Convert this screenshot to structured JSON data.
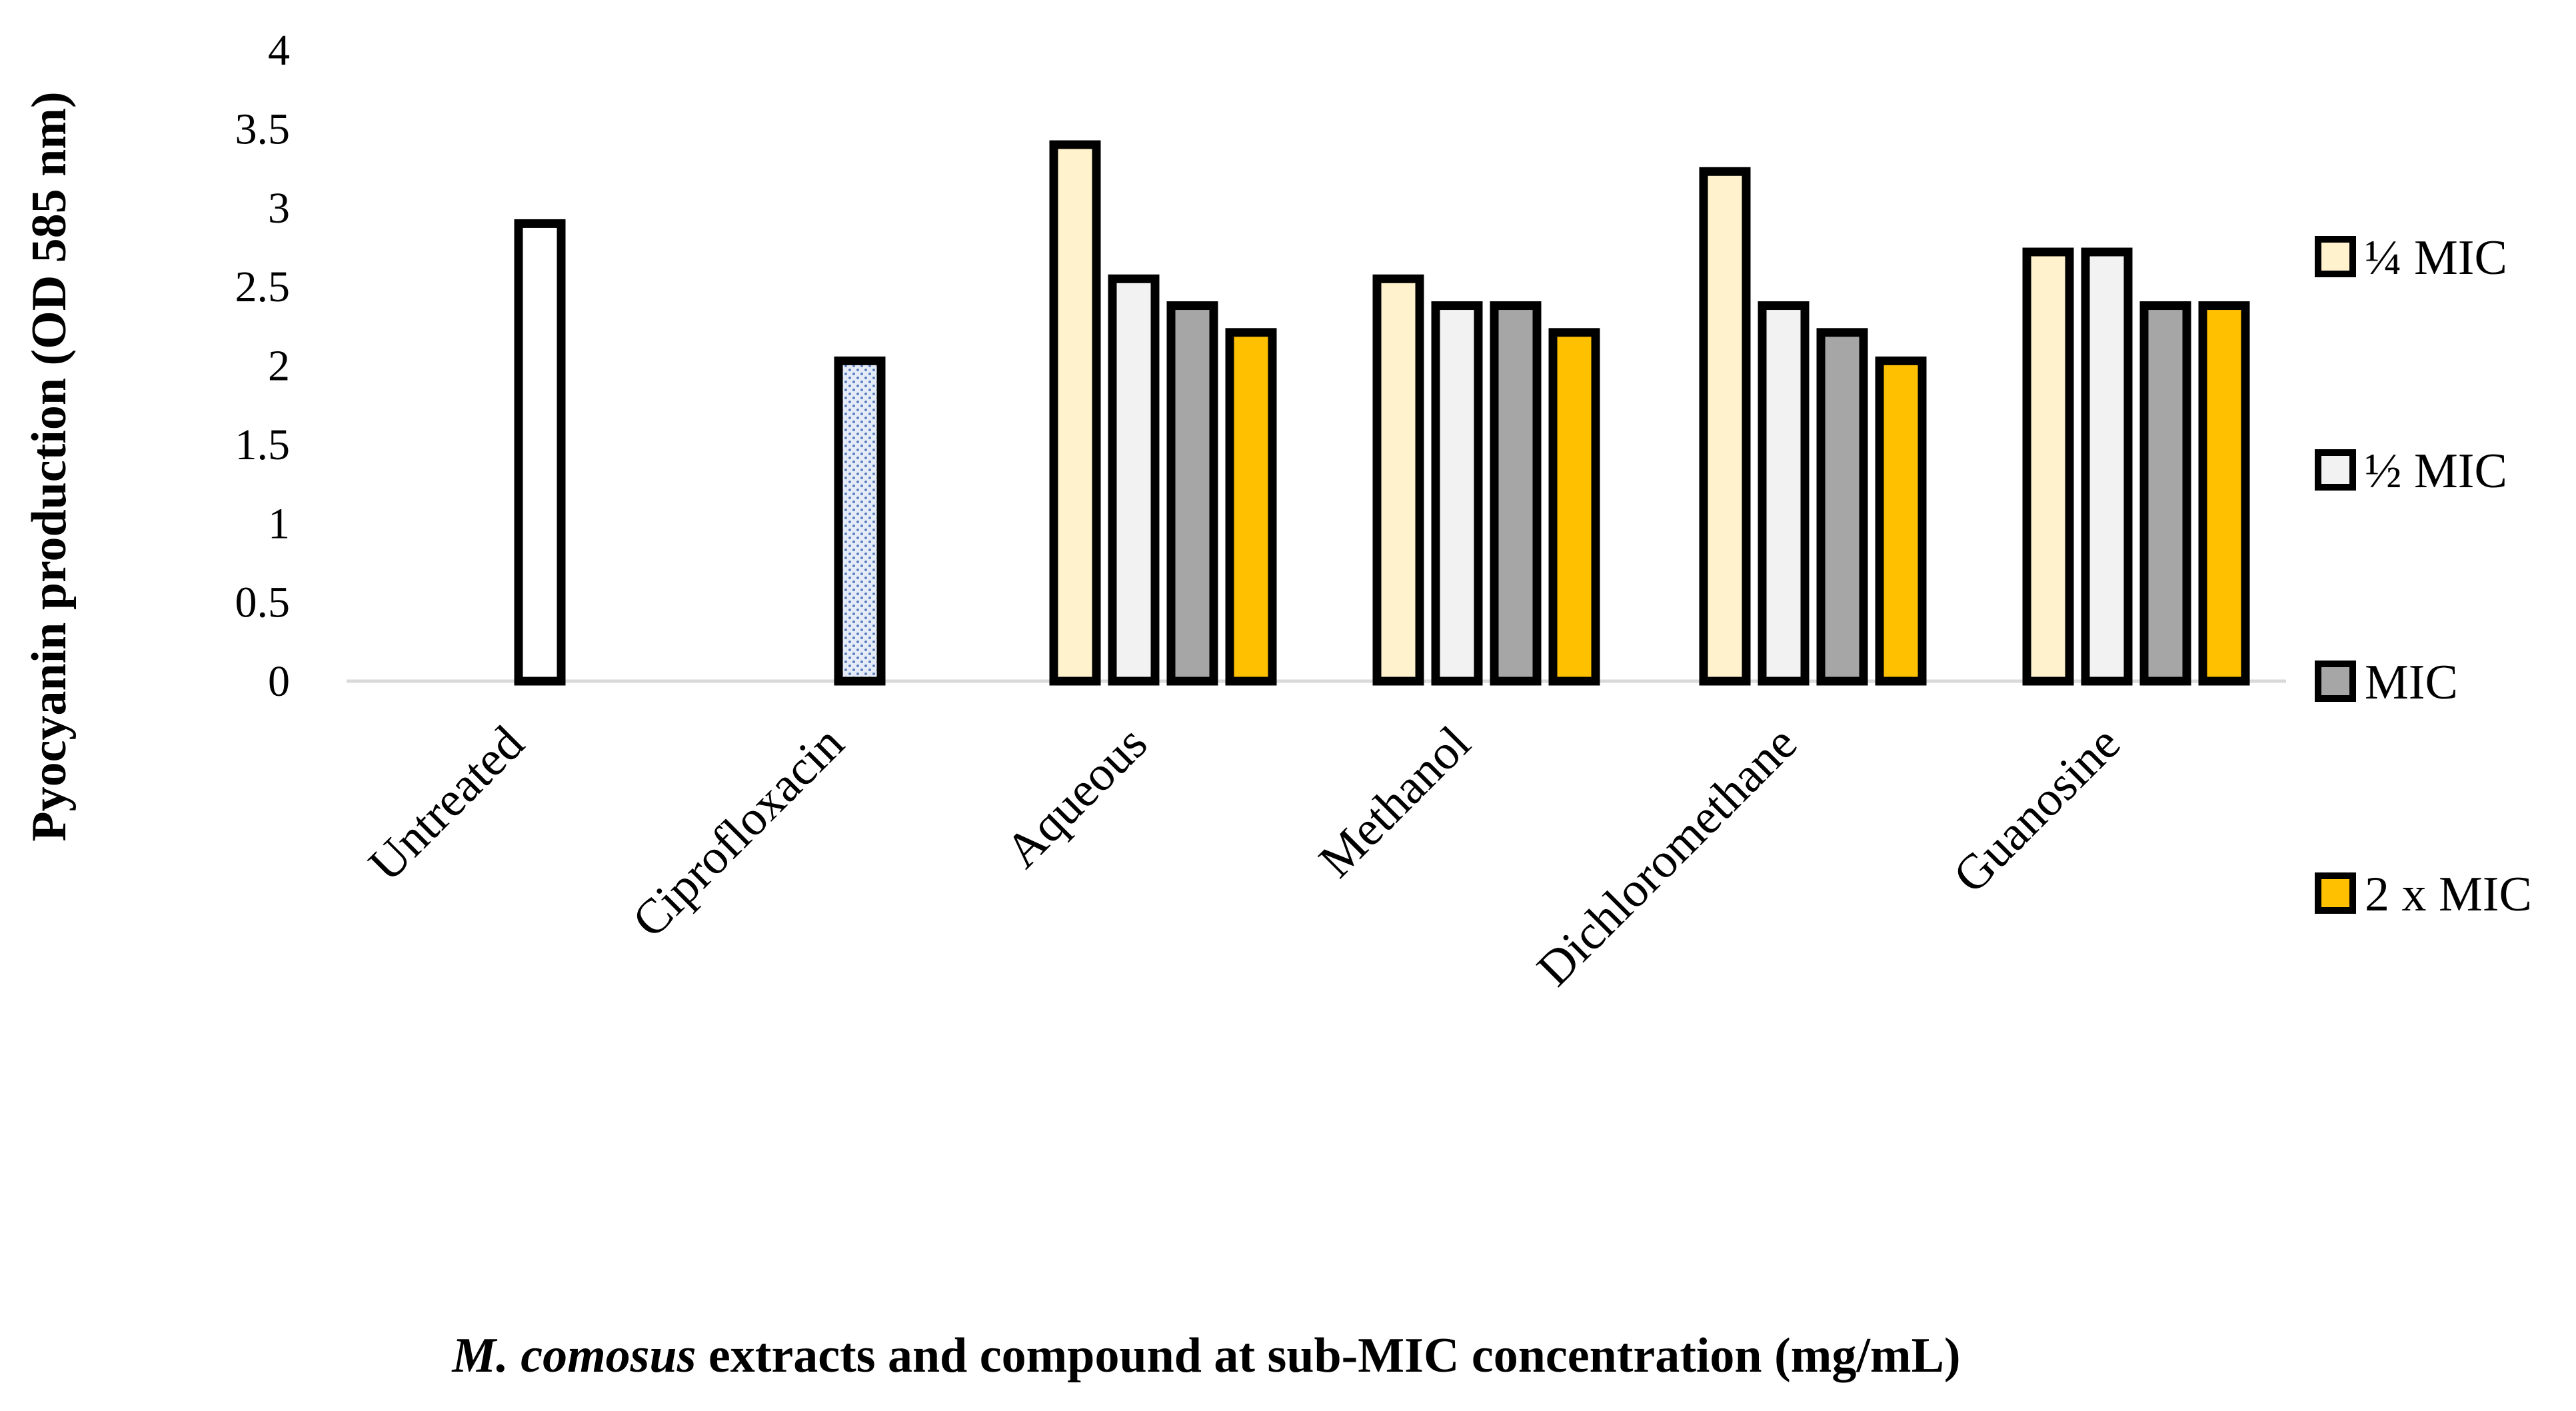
{
  "chart_data": {
    "type": "bar",
    "title": "",
    "ylabel": "Pyocyanin production  (OD 585 nm)",
    "xlabel_italic": "M. comosus",
    "xlabel_rest": " extracts and compound at sub-MIC concentration (mg/mL)",
    "ylim": [
      0,
      4
    ],
    "yticks": [
      "0",
      "0.5",
      "1",
      "1.5",
      "2",
      "2.5",
      "3",
      "3.5",
      "4"
    ],
    "grid": false,
    "legend_position": "right",
    "categories": [
      "Untreated",
      "Ciprofloxacin",
      "Aqueous",
      "Methanol",
      "Dichloromethane",
      "Guanosine"
    ],
    "controls": [
      {
        "category": "Untreated",
        "value": 2.9,
        "fill": "#ffffff",
        "pattern": "none"
      },
      {
        "category": "Ciprofloxacin",
        "value": 2.03,
        "fill": "#dfe7f5",
        "pattern": "dots"
      }
    ],
    "series": [
      {
        "name": "¼ MIC",
        "color": "#fff2cc",
        "values": [
          null,
          null,
          3.4,
          2.55,
          3.23,
          2.72
        ]
      },
      {
        "name": "½ MIC",
        "color": "#f2f2f2",
        "values": [
          null,
          null,
          2.55,
          2.38,
          2.38,
          2.72
        ]
      },
      {
        "name": "MIC",
        "color": "#a6a6a6",
        "values": [
          null,
          null,
          2.38,
          2.38,
          2.21,
          2.38
        ]
      },
      {
        "name": "2 x MIC",
        "color": "#ffc000",
        "values": [
          null,
          null,
          2.21,
          2.21,
          2.03,
          2.38
        ]
      }
    ]
  }
}
